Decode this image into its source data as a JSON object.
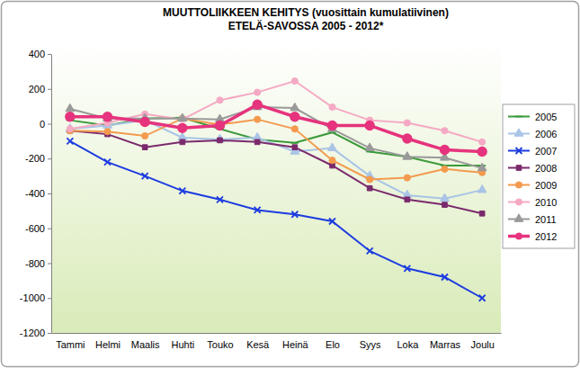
{
  "chart_data": {
    "type": "line",
    "title": "MUUTTOLIIKKEEN KEHITYS (vuosittain kumulatiivinen)",
    "subtitle": "ETELÄ-SAVOSSA  2005 - 2012*",
    "categories": [
      "Tammi",
      "Helmi",
      "Maalis",
      "Huhti",
      "Touko",
      "Kesä",
      "Heinä",
      "Elo",
      "Syys",
      "Loka",
      "Marras",
      "Joulu"
    ],
    "series": [
      {
        "name": "2005",
        "color": "#3a9a3a",
        "marker": "dash",
        "values": [
          20,
          -10,
          30,
          35,
          -30,
          -90,
          -110,
          -50,
          -160,
          -190,
          -240,
          -240
        ]
      },
      {
        "name": "2006",
        "color": "#a9c4e6",
        "marker": "triangle",
        "values": [
          -30,
          -10,
          20,
          -80,
          -90,
          -80,
          -160,
          -140,
          -300,
          -410,
          -430,
          -380
        ]
      },
      {
        "name": "2007",
        "color": "#1c3ce0",
        "marker": "x",
        "values": [
          -100,
          -220,
          -300,
          -385,
          -435,
          -495,
          -520,
          -560,
          -730,
          -830,
          -880,
          -1000
        ]
      },
      {
        "name": "2008",
        "color": "#7a2a6c",
        "marker": "square",
        "values": [
          -40,
          -60,
          -135,
          -105,
          -95,
          -105,
          -135,
          -240,
          -370,
          -435,
          -465,
          -515
        ]
      },
      {
        "name": "2009",
        "color": "#f39a4e",
        "marker": "circle",
        "values": [
          -40,
          -45,
          -70,
          30,
          -5,
          25,
          -30,
          -210,
          -320,
          -310,
          -260,
          -280
        ]
      },
      {
        "name": "2010",
        "color": "#f5a9c4",
        "marker": "circle",
        "values": [
          -30,
          5,
          55,
          25,
          135,
          180,
          245,
          95,
          20,
          5,
          -40,
          -105
        ]
      },
      {
        "name": "2011",
        "color": "#999999",
        "marker": "triangle",
        "values": [
          85,
          30,
          30,
          30,
          25,
          95,
          90,
          -30,
          -140,
          -190,
          -195,
          -255
        ]
      },
      {
        "name": "2012",
        "color": "#e6337d",
        "marker": "circle",
        "values": [
          40,
          40,
          10,
          -25,
          -10,
          110,
          40,
          -10,
          -10,
          -85,
          -150,
          -160
        ]
      }
    ],
    "ylim": [
      -1200,
      400
    ],
    "yticks": [
      -1200,
      -1000,
      -800,
      -600,
      -400,
      -200,
      0,
      200,
      400
    ],
    "grid": false,
    "legend": "right"
  }
}
